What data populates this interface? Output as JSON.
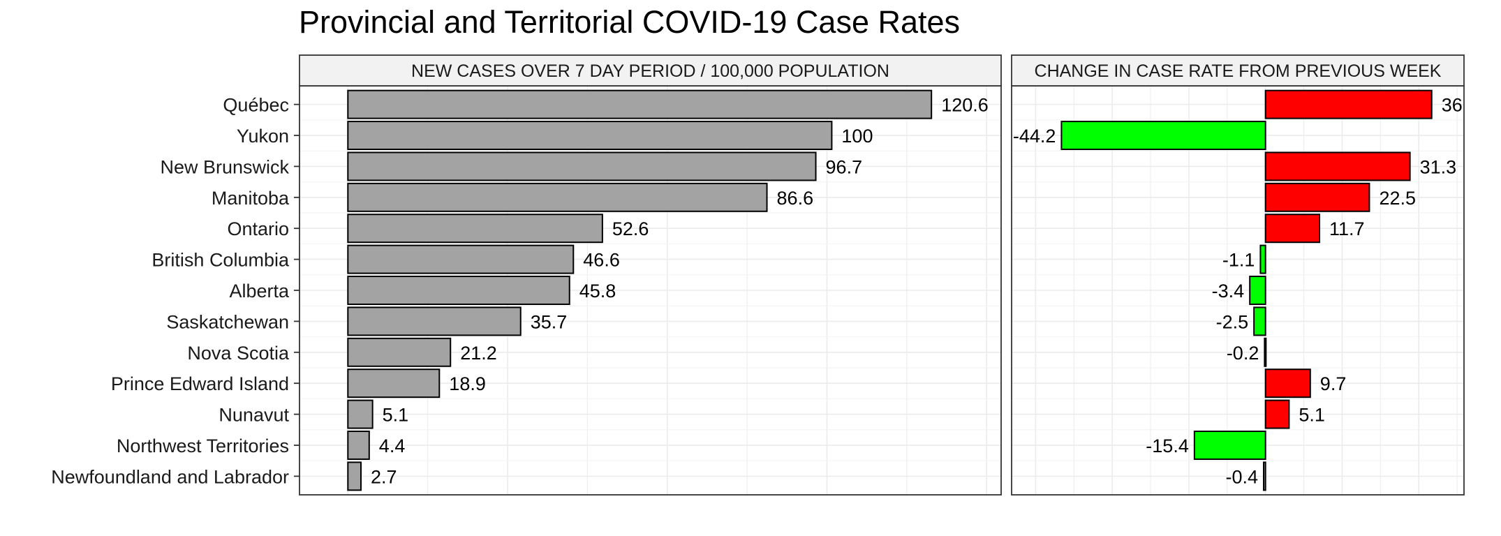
{
  "chart_data": {
    "title": "Provincial and Territorial COVID-19 Case Rates",
    "type": "bar",
    "orientation": "horizontal",
    "categories": [
      "Québec",
      "Yukon",
      "New Brunswick",
      "Manitoba",
      "Ontario",
      "British Columbia",
      "Alberta",
      "Saskatchewan",
      "Nova Scotia",
      "Prince Edward Island",
      "Nunavut",
      "Northwest Territories",
      "Newfoundland and Labrador"
    ],
    "panels": [
      {
        "strip_label": "NEW CASES OVER 7 DAY PERIOD / 100,000 POPULATION",
        "values": [
          120.6,
          100,
          96.7,
          86.6,
          52.6,
          46.6,
          45.8,
          35.7,
          21.2,
          18.9,
          5.1,
          4.4,
          2.7
        ],
        "value_labels": [
          "120.6",
          "100",
          "96.7",
          "86.6",
          "52.6",
          "46.6",
          "45.8",
          "35.7",
          "21.2",
          "18.9",
          "5.1",
          "4.4",
          "2.7"
        ],
        "xlim": [
          -10,
          135
        ],
        "bar_color": "#a3a3a3"
      },
      {
        "strip_label": "CHANGE IN CASE RATE FROM PREVIOUS WEEK",
        "values": [
          36,
          -44.2,
          31.3,
          22.5,
          11.7,
          -1.1,
          -3.4,
          -2.5,
          -0.2,
          9.7,
          5.1,
          -15.4,
          -0.4
        ],
        "value_labels": [
          "36",
          "-44.2",
          "31.3",
          "22.5",
          "11.7",
          "-1.1",
          "-3.4",
          "-2.5",
          "-0.2",
          "9.7",
          "5.1",
          "-15.4",
          "-0.4"
        ],
        "xlim": [
          -55,
          43
        ],
        "positive_color": "#ff0000",
        "negative_color": "#00ff00"
      }
    ],
    "grid": true,
    "legend": "none"
  }
}
